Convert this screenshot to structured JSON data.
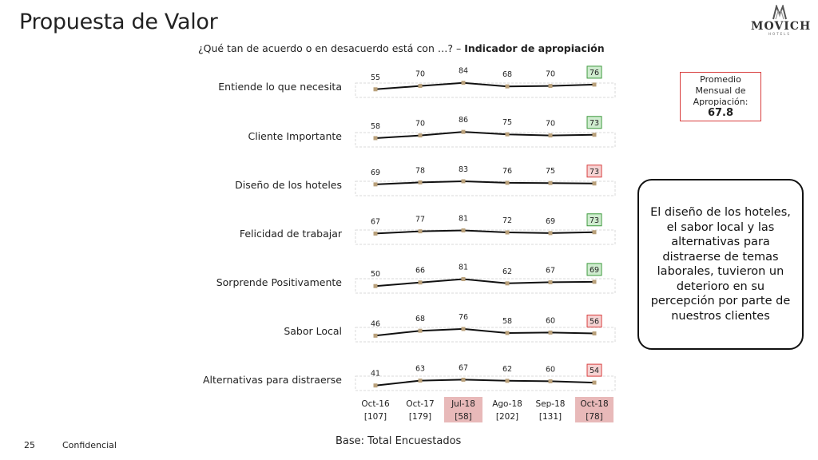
{
  "header": {
    "title": "Propuesta de Valor",
    "logo_word": "MOVICH",
    "logo_sub": "HOTELS"
  },
  "question": {
    "text": "¿Qué tan de acuerdo o en desacuerdo está con …? – ",
    "bold": "Indicador de apropiación"
  },
  "promedio": {
    "label": "Promedio Mensual de Apropiación:",
    "value": "67.8"
  },
  "callout": "El diseño de los hoteles, el sabor local y las alternativas para distraerse de temas laborales, tuvieron un deterioro en su percepción por parte de nuestros clientes",
  "footer": {
    "page_number": "25",
    "confidential": "Confidencial",
    "base": "Base: Total Encuestados"
  },
  "colors": {
    "line": "#111111",
    "marker": "#b9a07a",
    "up_fill": "#cfeccf",
    "up_border": "#3d9a3d",
    "down_fill": "#f6d3d3",
    "down_border": "#d83c3c",
    "month_highlight": "#e8b9b9"
  },
  "chart_data": {
    "type": "line",
    "categories": [
      "Oct-16",
      "Oct-17",
      "Jul-18",
      "Ago-18",
      "Sep-18",
      "Oct-18"
    ],
    "bases": [
      "[107]",
      "[179]",
      "[58]",
      "[202]",
      "[131]",
      "[78]"
    ],
    "highlighted_months": [
      2,
      5
    ],
    "series": [
      {
        "name": "Entiende lo que necesita",
        "values": [
          55,
          70,
          84,
          68,
          70,
          76
        ],
        "last_trend": "up"
      },
      {
        "name": "Cliente Importante",
        "values": [
          58,
          70,
          86,
          75,
          70,
          73
        ],
        "last_trend": "up"
      },
      {
        "name": "Diseño de los hoteles",
        "values": [
          69,
          78,
          83,
          76,
          75,
          73
        ],
        "last_trend": "down"
      },
      {
        "name": "Felicidad de trabajar",
        "values": [
          67,
          77,
          81,
          72,
          69,
          73
        ],
        "last_trend": "up"
      },
      {
        "name": "Sorprende Positivamente",
        "values": [
          50,
          66,
          81,
          62,
          67,
          69
        ],
        "last_trend": "up"
      },
      {
        "name": "Sabor Local",
        "values": [
          46,
          68,
          76,
          58,
          60,
          56
        ],
        "last_trend": "down"
      },
      {
        "name": "Alternativas para distraerse",
        "values": [
          41,
          63,
          67,
          62,
          60,
          54
        ],
        "last_trend": "down"
      }
    ]
  }
}
